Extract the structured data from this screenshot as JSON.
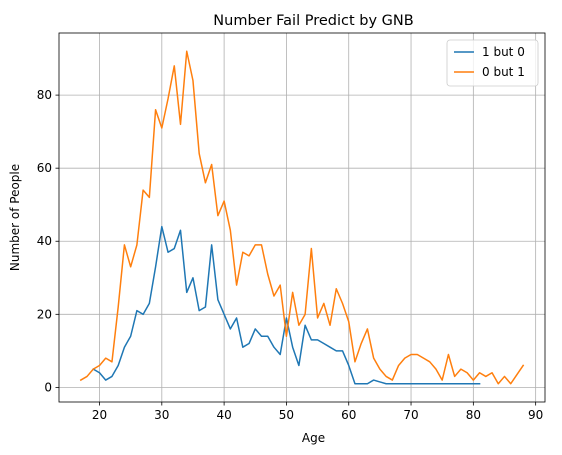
{
  "chart_data": {
    "type": "line",
    "title": "Number Fail Predict by GNB",
    "xlabel": "Age",
    "ylabel": "Number of People",
    "xlim": [
      13.5,
      91.5
    ],
    "ylim": [
      -4,
      97
    ],
    "xticks": [
      20,
      30,
      40,
      50,
      60,
      70,
      80,
      90
    ],
    "yticks": [
      0,
      20,
      40,
      60,
      80
    ],
    "grid": true,
    "legend_position": "top-right",
    "series": [
      {
        "name": "1 but 0",
        "color": "#1f77b4",
        "x": [
          19,
          20,
          21,
          22,
          23,
          24,
          25,
          26,
          27,
          28,
          29,
          30,
          31,
          32,
          33,
          34,
          35,
          36,
          37,
          38,
          39,
          40,
          41,
          42,
          43,
          44,
          45,
          46,
          47,
          48,
          49,
          50,
          51,
          52,
          53,
          54,
          55,
          56,
          57,
          58,
          59,
          60,
          61,
          62,
          63,
          64,
          65,
          66,
          67,
          68,
          69,
          70,
          71,
          72,
          73,
          74,
          75,
          76,
          77,
          78,
          79,
          80,
          81
        ],
        "y": [
          5,
          4,
          2,
          3,
          6,
          11,
          14,
          21,
          20,
          23,
          33,
          44,
          37,
          38,
          43,
          26,
          30,
          21,
          22,
          39,
          24,
          20,
          16,
          19,
          11,
          12,
          16,
          14,
          14,
          11,
          9,
          19,
          11,
          6,
          17,
          13,
          13,
          12,
          11,
          10,
          10,
          6,
          1,
          1,
          1,
          2,
          1.5,
          1,
          1,
          1,
          1,
          1,
          1,
          1,
          1,
          1,
          1,
          1,
          1,
          1,
          1,
          1,
          1
        ]
      },
      {
        "name": "0 but 1",
        "color": "#ff7f0e",
        "x": [
          17,
          18,
          19,
          20,
          21,
          22,
          23,
          24,
          25,
          26,
          27,
          28,
          29,
          30,
          31,
          32,
          33,
          34,
          35,
          36,
          37,
          38,
          39,
          40,
          41,
          42,
          43,
          44,
          45,
          46,
          47,
          48,
          49,
          50,
          51,
          52,
          53,
          54,
          55,
          56,
          57,
          58,
          59,
          60,
          61,
          62,
          63,
          64,
          65,
          66,
          67,
          68,
          69,
          70,
          71,
          72,
          73,
          74,
          75,
          76,
          77,
          78,
          79,
          80,
          81,
          82,
          83,
          84,
          85,
          86,
          87,
          88
        ],
        "y": [
          2,
          3,
          5,
          6,
          8,
          7,
          22,
          39,
          33,
          39,
          54,
          52,
          76,
          71,
          79,
          88,
          72,
          92,
          84,
          64,
          56,
          61,
          47,
          51,
          43,
          28,
          37,
          36,
          39,
          39,
          31,
          25,
          28,
          14,
          26,
          17,
          20,
          38,
          19,
          23,
          17,
          27,
          23,
          18,
          7,
          12,
          16,
          8,
          5,
          3,
          2,
          6,
          8,
          9,
          9,
          8,
          7,
          5,
          2,
          9,
          3,
          5,
          4,
          2,
          4,
          3,
          4,
          1,
          3,
          1,
          3.5,
          6
        ]
      }
    ]
  }
}
